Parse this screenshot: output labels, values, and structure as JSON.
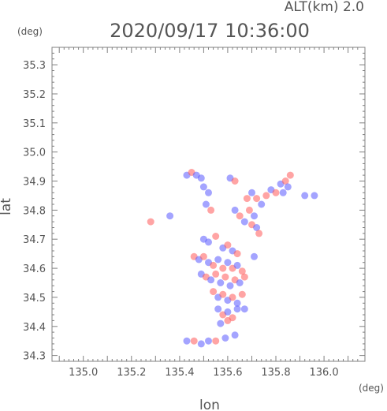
{
  "chart_data": {
    "type": "scatter",
    "title": "2020/09/17 10:36:00",
    "subtitle": "ALT(km) 2.0",
    "xlabel": "lon",
    "ylabel": "lat",
    "x_unit": "(deg)",
    "y_unit": "(deg)",
    "xlim": [
      134.87,
      136.17
    ],
    "ylim": [
      34.28,
      35.36
    ],
    "xticks": [
      "135.0",
      "135.2",
      "135.4",
      "135.6",
      "135.8",
      "136.0"
    ],
    "yticks": [
      "34.3",
      "34.4",
      "34.5",
      "34.6",
      "34.7",
      "34.8",
      "34.9",
      "35.0",
      "35.1",
      "35.2",
      "35.3"
    ],
    "grid": false,
    "color_positive": "#ff5a5a",
    "color_negative": "#5a5aff",
    "series": [
      {
        "points": [
          {
            "x": 135.43,
            "y": 34.92,
            "v": -1
          },
          {
            "x": 135.45,
            "y": 34.93,
            "v": 1
          },
          {
            "x": 135.47,
            "y": 34.92,
            "v": -1
          },
          {
            "x": 135.49,
            "y": 34.91,
            "v": -1
          },
          {
            "x": 135.61,
            "y": 34.91,
            "v": -1
          },
          {
            "x": 135.63,
            "y": 34.9,
            "v": 1
          },
          {
            "x": 135.5,
            "y": 34.88,
            "v": -1
          },
          {
            "x": 135.52,
            "y": 34.86,
            "v": -1
          },
          {
            "x": 135.51,
            "y": 34.82,
            "v": -1
          },
          {
            "x": 135.53,
            "y": 34.8,
            "v": 1
          },
          {
            "x": 135.63,
            "y": 34.8,
            "v": -1
          },
          {
            "x": 135.65,
            "y": 34.78,
            "v": 1
          },
          {
            "x": 135.67,
            "y": 34.76,
            "v": -1
          },
          {
            "x": 135.68,
            "y": 34.84,
            "v": 1
          },
          {
            "x": 135.7,
            "y": 34.86,
            "v": -1
          },
          {
            "x": 135.72,
            "y": 34.84,
            "v": 1
          },
          {
            "x": 135.74,
            "y": 34.82,
            "v": -1
          },
          {
            "x": 135.76,
            "y": 34.85,
            "v": 1
          },
          {
            "x": 135.78,
            "y": 34.87,
            "v": -1
          },
          {
            "x": 135.8,
            "y": 34.86,
            "v": 1
          },
          {
            "x": 135.82,
            "y": 34.89,
            "v": -1
          },
          {
            "x": 135.84,
            "y": 34.9,
            "v": 1
          },
          {
            "x": 135.85,
            "y": 34.88,
            "v": -1
          },
          {
            "x": 135.86,
            "y": 34.92,
            "v": 1
          },
          {
            "x": 135.83,
            "y": 34.86,
            "v": -1
          },
          {
            "x": 135.69,
            "y": 34.8,
            "v": 1
          },
          {
            "x": 135.71,
            "y": 34.78,
            "v": -1
          },
          {
            "x": 135.7,
            "y": 34.75,
            "v": 1
          },
          {
            "x": 135.72,
            "y": 34.74,
            "v": -1
          },
          {
            "x": 135.73,
            "y": 34.72,
            "v": 1
          },
          {
            "x": 135.92,
            "y": 34.85,
            "v": -1
          },
          {
            "x": 135.96,
            "y": 34.85,
            "v": -1
          },
          {
            "x": 135.28,
            "y": 34.76,
            "v": 1
          },
          {
            "x": 135.36,
            "y": 34.78,
            "v": -1
          },
          {
            "x": 135.5,
            "y": 34.7,
            "v": -1
          },
          {
            "x": 135.52,
            "y": 34.69,
            "v": -1
          },
          {
            "x": 135.55,
            "y": 34.71,
            "v": 1
          },
          {
            "x": 135.58,
            "y": 34.67,
            "v": -1
          },
          {
            "x": 135.6,
            "y": 34.68,
            "v": 1
          },
          {
            "x": 135.62,
            "y": 34.66,
            "v": -1
          },
          {
            "x": 135.64,
            "y": 34.65,
            "v": 1
          },
          {
            "x": 135.46,
            "y": 34.64,
            "v": 1
          },
          {
            "x": 135.48,
            "y": 34.63,
            "v": -1
          },
          {
            "x": 135.5,
            "y": 34.64,
            "v": 1
          },
          {
            "x": 135.52,
            "y": 34.62,
            "v": -1
          },
          {
            "x": 135.54,
            "y": 34.61,
            "v": 1
          },
          {
            "x": 135.56,
            "y": 34.63,
            "v": -1
          },
          {
            "x": 135.58,
            "y": 34.6,
            "v": 1
          },
          {
            "x": 135.6,
            "y": 34.62,
            "v": -1
          },
          {
            "x": 135.62,
            "y": 34.6,
            "v": 1
          },
          {
            "x": 135.64,
            "y": 34.61,
            "v": -1
          },
          {
            "x": 135.66,
            "y": 34.59,
            "v": 1
          },
          {
            "x": 135.49,
            "y": 34.58,
            "v": -1
          },
          {
            "x": 135.51,
            "y": 34.57,
            "v": 1
          },
          {
            "x": 135.53,
            "y": 34.56,
            "v": -1
          },
          {
            "x": 135.55,
            "y": 34.58,
            "v": 1
          },
          {
            "x": 135.57,
            "y": 34.55,
            "v": -1
          },
          {
            "x": 135.59,
            "y": 34.57,
            "v": 1
          },
          {
            "x": 135.61,
            "y": 34.54,
            "v": -1
          },
          {
            "x": 135.63,
            "y": 34.56,
            "v": 1
          },
          {
            "x": 135.65,
            "y": 34.55,
            "v": -1
          },
          {
            "x": 135.67,
            "y": 34.57,
            "v": 1
          },
          {
            "x": 135.54,
            "y": 34.52,
            "v": 1
          },
          {
            "x": 135.56,
            "y": 34.5,
            "v": -1
          },
          {
            "x": 135.58,
            "y": 34.51,
            "v": 1
          },
          {
            "x": 135.6,
            "y": 34.49,
            "v": -1
          },
          {
            "x": 135.62,
            "y": 34.5,
            "v": 1
          },
          {
            "x": 135.64,
            "y": 34.48,
            "v": -1
          },
          {
            "x": 135.66,
            "y": 34.51,
            "v": 1
          },
          {
            "x": 135.56,
            "y": 34.46,
            "v": -1
          },
          {
            "x": 135.58,
            "y": 34.44,
            "v": 1
          },
          {
            "x": 135.6,
            "y": 34.45,
            "v": -1
          },
          {
            "x": 135.62,
            "y": 34.43,
            "v": 1
          },
          {
            "x": 135.64,
            "y": 34.46,
            "v": -1
          },
          {
            "x": 135.67,
            "y": 34.46,
            "v": -1
          },
          {
            "x": 135.57,
            "y": 34.41,
            "v": -1
          },
          {
            "x": 135.6,
            "y": 34.42,
            "v": 1
          },
          {
            "x": 135.71,
            "y": 34.64,
            "v": -1
          },
          {
            "x": 135.43,
            "y": 34.35,
            "v": -1
          },
          {
            "x": 135.46,
            "y": 34.35,
            "v": 1
          },
          {
            "x": 135.49,
            "y": 34.34,
            "v": -1
          },
          {
            "x": 135.52,
            "y": 34.35,
            "v": -1
          },
          {
            "x": 135.55,
            "y": 34.35,
            "v": 1
          },
          {
            "x": 135.59,
            "y": 34.36,
            "v": -1
          },
          {
            "x": 135.63,
            "y": 34.37,
            "v": -1
          }
        ]
      }
    ]
  }
}
